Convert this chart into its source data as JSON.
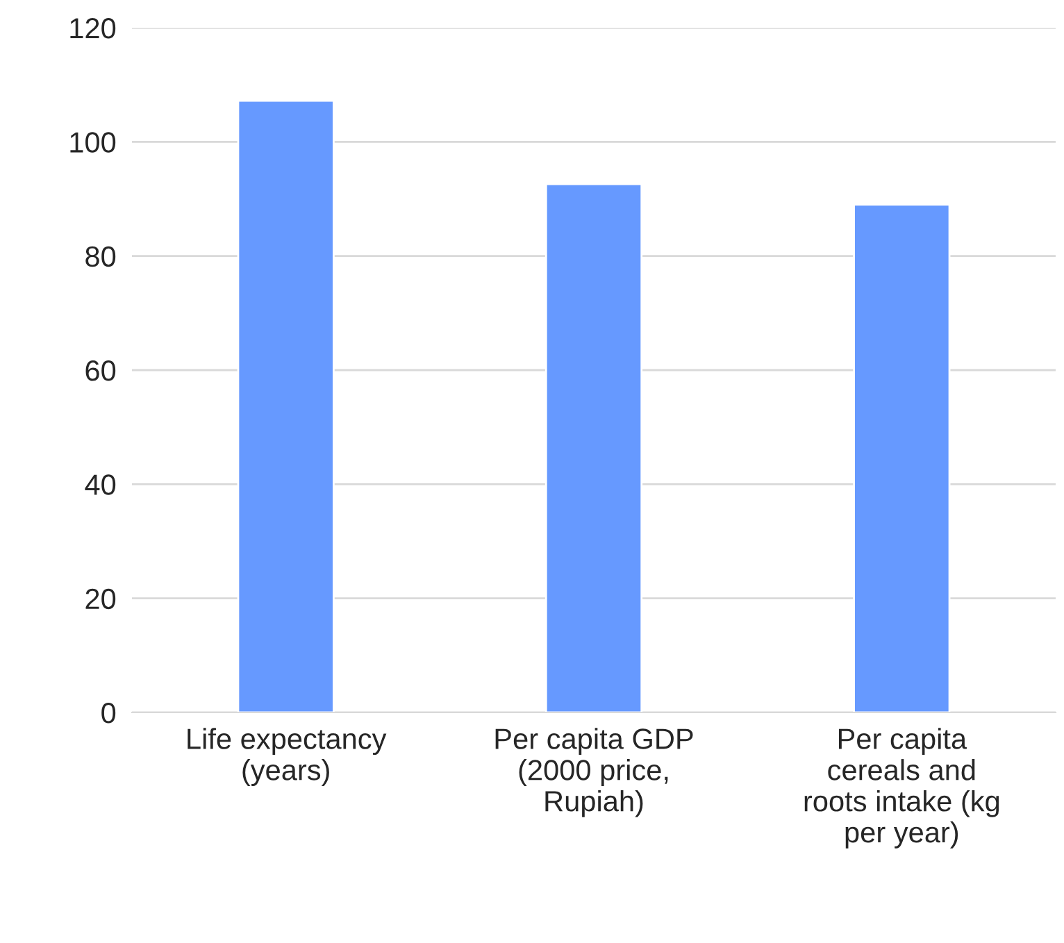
{
  "chart_data": {
    "type": "bar",
    "categories": [
      "Life expectancy (years)",
      "Per capita GDP (2000 price, Rupiah)",
      "Per capita cereals and roots intake (kg per year)"
    ],
    "values": [
      107.2,
      92.6,
      89.0
    ],
    "color": "#6699ff",
    "ylim": [
      0,
      120
    ],
    "yticks": [
      0,
      20,
      40,
      60,
      80,
      100,
      120
    ],
    "grid": "y"
  }
}
